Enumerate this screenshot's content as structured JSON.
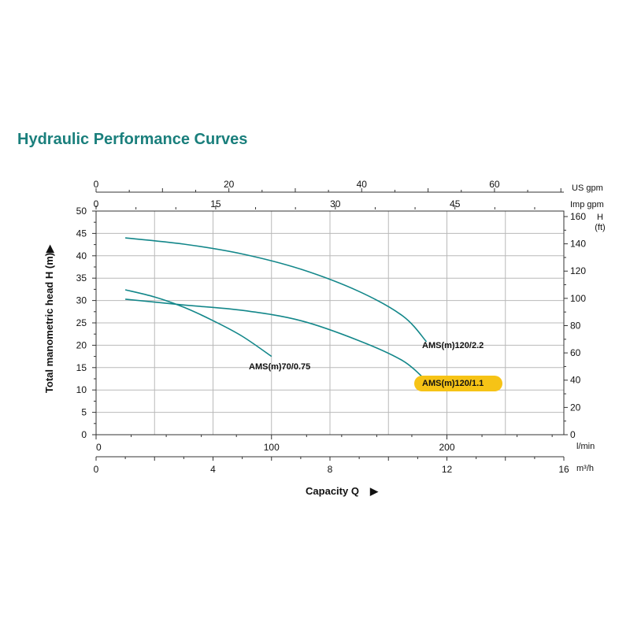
{
  "title": "Hydraulic Performance Curves",
  "colors": {
    "title": "#1a7f7c",
    "curve": "#13878a",
    "highlight": "#f6c316",
    "grid": "#b9b9b9"
  },
  "chart_data": {
    "type": "line",
    "xlabel": "Capacity Q",
    "ylabel": "Total manometric head H (m)",
    "xlim_m3h": [
      0,
      16
    ],
    "ylim_m": [
      0,
      50
    ],
    "grid": true,
    "y_ticks_m": [
      0,
      5,
      10,
      15,
      20,
      25,
      30,
      35,
      40,
      45,
      50
    ],
    "y_ticks_ft": [
      0,
      20,
      40,
      60,
      80,
      100,
      120,
      140,
      160
    ],
    "y_unit_ft_label": "H",
    "y_unit_ft_sub": "(ft)",
    "x_ticks_lmin": [
      0,
      100,
      200
    ],
    "x_unit_lmin": "l/min",
    "x_ticks_m3h": [
      0,
      4,
      8,
      12,
      16
    ],
    "x_unit_m3h": "m³/h",
    "x_ticks_usgpm": [
      0,
      20,
      40,
      60
    ],
    "x_unit_usgpm": "US gpm",
    "x_ticks_impgpm": [
      0,
      15,
      30,
      45
    ],
    "x_unit_impgpm": "Imp gpm",
    "series": [
      {
        "name": "AMS(m)120/2.2",
        "highlight": false,
        "points": [
          [
            1.0,
            44.0
          ],
          [
            3.0,
            42.6
          ],
          [
            5.0,
            40.4
          ],
          [
            7.0,
            37.0
          ],
          [
            9.0,
            32.0
          ],
          [
            10.5,
            26.5
          ],
          [
            11.3,
            20.8
          ]
        ]
      },
      {
        "name": "AMS(m)70/0.75",
        "highlight": false,
        "points": [
          [
            1.0,
            32.4
          ],
          [
            2.0,
            30.8
          ],
          [
            3.0,
            28.5
          ],
          [
            4.0,
            25.5
          ],
          [
            5.0,
            22.0
          ],
          [
            6.0,
            17.5
          ]
        ]
      },
      {
        "name": "AMS(m)120/1.1",
        "highlight": true,
        "points": [
          [
            1.0,
            30.3
          ],
          [
            3.0,
            29.0
          ],
          [
            5.0,
            27.8
          ],
          [
            7.0,
            25.5
          ],
          [
            9.0,
            21.0
          ],
          [
            10.5,
            16.5
          ],
          [
            11.3,
            12.0
          ]
        ]
      }
    ]
  }
}
